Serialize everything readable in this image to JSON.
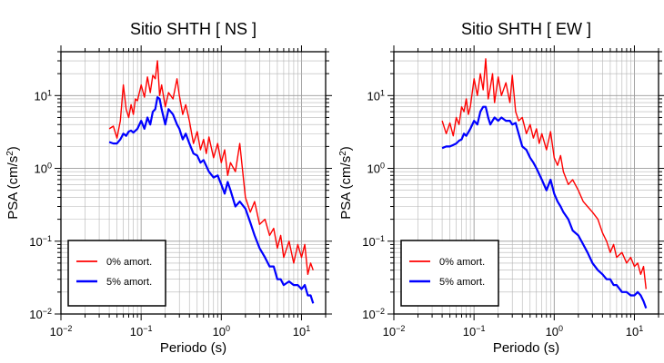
{
  "chart_data": [
    {
      "type": "line",
      "title": "Sitio SHTH [ NS ]",
      "xlabel": "Periodo (s)",
      "ylabel": "PSA (cm/s²)",
      "xscale": "log",
      "yscale": "log",
      "xlim": [
        0.01,
        20
      ],
      "ylim": [
        0.01,
        40
      ],
      "x_tick_labels": [
        "10^-2",
        "10^-1",
        "10^0",
        "10^1"
      ],
      "y_tick_labels": [
        "10^-2",
        "10^-1",
        "10^0",
        "10^1"
      ],
      "grid": true,
      "legend_position": "bottom-left",
      "series": [
        {
          "name": "0% amort.",
          "color": "#ff0000",
          "x": [
            0.04,
            0.045,
            0.05,
            0.055,
            0.06,
            0.065,
            0.07,
            0.075,
            0.08,
            0.085,
            0.09,
            0.1,
            0.11,
            0.12,
            0.13,
            0.14,
            0.15,
            0.16,
            0.17,
            0.18,
            0.2,
            0.22,
            0.25,
            0.28,
            0.3,
            0.33,
            0.36,
            0.4,
            0.45,
            0.5,
            0.55,
            0.6,
            0.65,
            0.7,
            0.8,
            0.9,
            1.0,
            1.1,
            1.2,
            1.3,
            1.5,
            1.7,
            2.0,
            2.3,
            2.6,
            3.0,
            3.5,
            4.0,
            4.5,
            5.0,
            5.5,
            6.0,
            7.0,
            8.0,
            9.0,
            10.0,
            11.0,
            12.0,
            13.0,
            14.0
          ],
          "values": [
            3.5,
            3.8,
            2.6,
            4.5,
            14.0,
            6.5,
            5.0,
            7.5,
            5.5,
            9.0,
            8.5,
            14.0,
            9.5,
            18.0,
            11.0,
            19.0,
            17.0,
            30.0,
            10.0,
            14.0,
            7.0,
            11.0,
            9.0,
            17.0,
            10.0,
            5.5,
            7.5,
            4.5,
            2.2,
            3.2,
            1.8,
            2.5,
            1.6,
            2.7,
            1.4,
            2.2,
            1.2,
            1.8,
            0.8,
            1.2,
            0.9,
            2.2,
            0.4,
            0.25,
            0.35,
            0.17,
            0.2,
            0.12,
            0.15,
            0.08,
            0.12,
            0.06,
            0.1,
            0.05,
            0.09,
            0.06,
            0.09,
            0.035,
            0.05,
            0.04
          ]
        },
        {
          "name": "5% amort.",
          "color": "#0000ff",
          "x": [
            0.04,
            0.045,
            0.05,
            0.055,
            0.06,
            0.065,
            0.07,
            0.075,
            0.08,
            0.09,
            0.1,
            0.11,
            0.12,
            0.13,
            0.14,
            0.15,
            0.16,
            0.17,
            0.18,
            0.2,
            0.22,
            0.25,
            0.28,
            0.3,
            0.33,
            0.36,
            0.4,
            0.45,
            0.5,
            0.55,
            0.6,
            0.7,
            0.8,
            0.9,
            1.0,
            1.1,
            1.2,
            1.3,
            1.5,
            1.7,
            2.0,
            2.3,
            2.6,
            3.0,
            3.5,
            4.0,
            4.5,
            5.0,
            5.5,
            6.0,
            7.0,
            8.0,
            9.0,
            10.0,
            11.0,
            12.0,
            13.0,
            14.0
          ],
          "values": [
            2.3,
            2.2,
            2.2,
            2.5,
            3.0,
            2.8,
            3.2,
            3.3,
            3.1,
            3.5,
            4.5,
            3.5,
            5.0,
            4.0,
            6.0,
            6.5,
            9.5,
            9.0,
            6.5,
            4.0,
            6.5,
            5.5,
            4.0,
            3.5,
            2.5,
            3.0,
            2.2,
            1.6,
            1.5,
            1.2,
            1.3,
            0.9,
            0.75,
            0.8,
            0.6,
            0.45,
            0.65,
            0.5,
            0.3,
            0.35,
            0.28,
            0.18,
            0.12,
            0.08,
            0.06,
            0.045,
            0.045,
            0.03,
            0.03,
            0.025,
            0.028,
            0.025,
            0.025,
            0.022,
            0.025,
            0.018,
            0.018,
            0.014
          ]
        }
      ]
    },
    {
      "type": "line",
      "title": "Sitio SHTH [ EW ]",
      "xlabel": "Periodo (s)",
      "ylabel": "PSA (cm/s²)",
      "xscale": "log",
      "yscale": "log",
      "xlim": [
        0.01,
        20
      ],
      "ylim": [
        0.01,
        40
      ],
      "x_tick_labels": [
        "10^-2",
        "10^-1",
        "10^0",
        "10^1"
      ],
      "y_tick_labels": [
        "10^-2",
        "10^-1",
        "10^0",
        "10^1"
      ],
      "grid": true,
      "legend_position": "bottom-left",
      "series": [
        {
          "name": "0% amort.",
          "color": "#ff0000",
          "x": [
            0.04,
            0.045,
            0.05,
            0.055,
            0.06,
            0.065,
            0.07,
            0.075,
            0.08,
            0.085,
            0.09,
            0.1,
            0.11,
            0.12,
            0.13,
            0.14,
            0.15,
            0.16,
            0.17,
            0.18,
            0.2,
            0.22,
            0.25,
            0.28,
            0.3,
            0.33,
            0.36,
            0.4,
            0.45,
            0.5,
            0.55,
            0.6,
            0.65,
            0.7,
            0.8,
            0.9,
            1.0,
            1.1,
            1.2,
            1.3,
            1.5,
            1.7,
            2.0,
            2.3,
            2.6,
            3.0,
            3.5,
            4.0,
            4.5,
            5.0,
            5.5,
            6.0,
            7.0,
            8.0,
            9.0,
            10.0,
            11.0,
            12.0,
            13.0,
            14.0
          ],
          "values": [
            4.5,
            3.0,
            4.2,
            2.8,
            5.0,
            4.0,
            7.0,
            6.0,
            9.0,
            5.5,
            7.0,
            17.0,
            10.0,
            20.0,
            12.0,
            32.0,
            9.0,
            13.0,
            20.0,
            8.0,
            18.0,
            10.0,
            15.0,
            8.0,
            19.0,
            6.0,
            4.5,
            5.0,
            3.0,
            4.0,
            2.6,
            3.5,
            2.2,
            3.0,
            1.8,
            3.2,
            1.4,
            1.1,
            1.5,
            0.9,
            0.6,
            0.7,
            0.5,
            0.35,
            0.3,
            0.25,
            0.2,
            0.13,
            0.1,
            0.07,
            0.09,
            0.06,
            0.07,
            0.05,
            0.06,
            0.045,
            0.05,
            0.035,
            0.045,
            0.022
          ]
        },
        {
          "name": "5% amort.",
          "color": "#0000ff",
          "x": [
            0.04,
            0.045,
            0.05,
            0.055,
            0.06,
            0.065,
            0.07,
            0.075,
            0.08,
            0.09,
            0.1,
            0.11,
            0.12,
            0.13,
            0.14,
            0.15,
            0.16,
            0.17,
            0.18,
            0.2,
            0.22,
            0.25,
            0.28,
            0.3,
            0.33,
            0.36,
            0.4,
            0.45,
            0.5,
            0.55,
            0.6,
            0.7,
            0.8,
            0.9,
            1.0,
            1.1,
            1.2,
            1.3,
            1.5,
            1.7,
            2.0,
            2.3,
            2.6,
            3.0,
            3.5,
            4.0,
            4.5,
            5.0,
            5.5,
            6.0,
            7.0,
            8.0,
            9.0,
            10.0,
            11.0,
            12.0,
            13.0,
            14.0
          ],
          "values": [
            1.9,
            2.0,
            2.0,
            2.1,
            2.2,
            2.4,
            2.5,
            3.0,
            2.8,
            3.5,
            4.5,
            4.0,
            6.0,
            7.0,
            7.0,
            5.0,
            4.0,
            4.5,
            5.0,
            4.5,
            5.0,
            4.5,
            4.5,
            4.0,
            4.2,
            3.0,
            2.0,
            1.8,
            1.4,
            1.2,
            1.0,
            0.7,
            0.5,
            0.7,
            0.45,
            0.35,
            0.3,
            0.25,
            0.2,
            0.14,
            0.12,
            0.09,
            0.07,
            0.05,
            0.04,
            0.035,
            0.03,
            0.03,
            0.025,
            0.025,
            0.02,
            0.02,
            0.018,
            0.018,
            0.02,
            0.018,
            0.015,
            0.012
          ]
        }
      ]
    }
  ]
}
